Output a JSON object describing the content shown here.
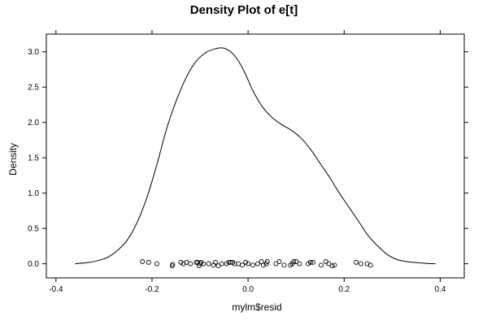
{
  "chart_data": {
    "type": "density",
    "title": "Density Plot of e[t]",
    "xlabel": "mylm$resid",
    "ylabel": "Density",
    "xlim": [
      -0.42,
      0.45
    ],
    "ylim": [
      -0.2,
      3.25
    ],
    "x_ticks": [
      -0.4,
      -0.2,
      0.0,
      0.2,
      0.4
    ],
    "x_tick_labels": [
      "-0.4",
      "-0.2",
      "0.0",
      "0.2",
      "0.4"
    ],
    "y_ticks": [
      0.0,
      0.5,
      1.0,
      1.5,
      2.0,
      2.5,
      3.0
    ],
    "y_tick_labels": [
      "0.0",
      "0.5",
      "1.0",
      "1.5",
      "2.0",
      "2.5",
      "3.0"
    ],
    "density_curve": {
      "x": [
        -0.36,
        -0.33,
        -0.31,
        -0.29,
        -0.27,
        -0.25,
        -0.23,
        -0.21,
        -0.19,
        -0.17,
        -0.15,
        -0.13,
        -0.11,
        -0.09,
        -0.07,
        -0.05,
        -0.03,
        -0.01,
        0.01,
        0.03,
        0.05,
        0.07,
        0.09,
        0.11,
        0.13,
        0.15,
        0.17,
        0.19,
        0.21,
        0.23,
        0.25,
        0.27,
        0.29,
        0.31,
        0.33,
        0.36,
        0.39
      ],
      "y": [
        0.0,
        0.02,
        0.05,
        0.1,
        0.2,
        0.35,
        0.6,
        0.95,
        1.4,
        1.9,
        2.3,
        2.62,
        2.85,
        2.98,
        3.04,
        3.05,
        2.96,
        2.75,
        2.45,
        2.22,
        2.07,
        1.97,
        1.89,
        1.78,
        1.62,
        1.42,
        1.22,
        1.0,
        0.8,
        0.6,
        0.4,
        0.25,
        0.13,
        0.06,
        0.03,
        0.01,
        0.0
      ]
    },
    "rug_points": [
      {
        "x": -0.22,
        "y": 0.03
      },
      {
        "x": -0.207,
        "y": 0.02
      },
      {
        "x": -0.19,
        "y": 0.0
      },
      {
        "x": -0.158,
        "y": -0.03
      },
      {
        "x": -0.157,
        "y": -0.01
      },
      {
        "x": -0.14,
        "y": 0.02
      },
      {
        "x": -0.135,
        "y": 0.0
      },
      {
        "x": -0.128,
        "y": 0.02
      },
      {
        "x": -0.12,
        "y": 0.0
      },
      {
        "x": -0.108,
        "y": 0.02
      },
      {
        "x": -0.105,
        "y": 0.02
      },
      {
        "x": -0.102,
        "y": -0.03
      },
      {
        "x": -0.1,
        "y": 0.0
      },
      {
        "x": -0.098,
        "y": 0.02
      },
      {
        "x": -0.093,
        "y": 0.0
      },
      {
        "x": -0.082,
        "y": 0.0
      },
      {
        "x": -0.072,
        "y": -0.02
      },
      {
        "x": -0.068,
        "y": 0.02
      },
      {
        "x": -0.062,
        "y": -0.03
      },
      {
        "x": -0.055,
        "y": 0.0
      },
      {
        "x": -0.045,
        "y": 0.0
      },
      {
        "x": -0.04,
        "y": 0.02
      },
      {
        "x": -0.036,
        "y": 0.02
      },
      {
        "x": -0.032,
        "y": 0.02
      },
      {
        "x": -0.028,
        "y": 0.0
      },
      {
        "x": -0.02,
        "y": 0.0
      },
      {
        "x": -0.012,
        "y": -0.02
      },
      {
        "x": -0.005,
        "y": 0.02
      },
      {
        "x": 0.0,
        "y": 0.0
      },
      {
        "x": 0.01,
        "y": -0.02
      },
      {
        "x": 0.02,
        "y": 0.0
      },
      {
        "x": 0.028,
        "y": 0.03
      },
      {
        "x": 0.032,
        "y": -0.02
      },
      {
        "x": 0.038,
        "y": 0.0
      },
      {
        "x": 0.04,
        "y": 0.03
      },
      {
        "x": 0.058,
        "y": 0.0
      },
      {
        "x": 0.065,
        "y": 0.03
      },
      {
        "x": 0.075,
        "y": -0.02
      },
      {
        "x": 0.088,
        "y": -0.02
      },
      {
        "x": 0.092,
        "y": 0.0
      },
      {
        "x": 0.095,
        "y": 0.03
      },
      {
        "x": 0.1,
        "y": 0.03
      },
      {
        "x": 0.107,
        "y": 0.0
      },
      {
        "x": 0.125,
        "y": 0.0
      },
      {
        "x": 0.13,
        "y": 0.02
      },
      {
        "x": 0.135,
        "y": 0.02
      },
      {
        "x": 0.152,
        "y": -0.02
      },
      {
        "x": 0.162,
        "y": 0.03
      },
      {
        "x": 0.168,
        "y": 0.0
      },
      {
        "x": 0.175,
        "y": -0.03
      },
      {
        "x": 0.18,
        "y": -0.02
      },
      {
        "x": 0.225,
        "y": 0.02
      },
      {
        "x": 0.235,
        "y": 0.0
      },
      {
        "x": 0.248,
        "y": 0.0
      },
      {
        "x": 0.255,
        "y": -0.02
      }
    ],
    "grid": false,
    "legend": "none",
    "colors": {
      "line": "#000000",
      "points": "#000000",
      "background": "#ffffff"
    }
  }
}
